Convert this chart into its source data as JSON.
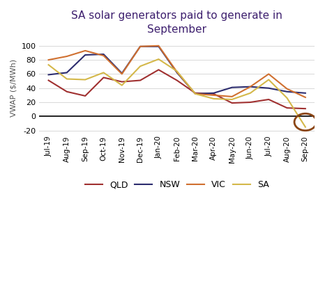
{
  "title": "SA solar generators paid to generate in\nSeptember",
  "ylabel": "VWAP ($/MWh)",
  "xlabels": [
    "Jul-19",
    "Aug-19",
    "Sep-19",
    "Oct-19",
    "Nov-19",
    "Dec-19",
    "Jan-20",
    "Feb-20",
    "Mar-20",
    "Apr-20",
    "May-20",
    "Jun-20",
    "Jul-20",
    "Aug-20",
    "Sep-20"
  ],
  "series": {
    "QLD": {
      "color": "#a03030",
      "values": [
        51,
        35,
        29,
        55,
        49,
        51,
        66,
        51,
        33,
        32,
        19,
        20,
        24,
        12,
        11
      ]
    },
    "NSW": {
      "color": "#2c2c6e",
      "values": [
        59,
        62,
        87,
        88,
        61,
        99,
        99,
        62,
        32,
        33,
        41,
        42,
        40,
        35,
        33
      ]
    },
    "VIC": {
      "color": "#d07030",
      "values": [
        80,
        85,
        93,
        86,
        60,
        99,
        100,
        63,
        32,
        30,
        28,
        42,
        60,
        39,
        27
      ]
    },
    "SA": {
      "color": "#d4b84a",
      "values": [
        73,
        53,
        52,
        62,
        44,
        71,
        81,
        64,
        32,
        25,
        24,
        33,
        52,
        26,
        -15
      ]
    }
  },
  "ylim": [
    -25,
    105
  ],
  "yticks": [
    -20,
    0,
    20,
    40,
    60,
    80,
    100
  ],
  "title_color": "#3d1f6e",
  "background_color": "#ffffff"
}
